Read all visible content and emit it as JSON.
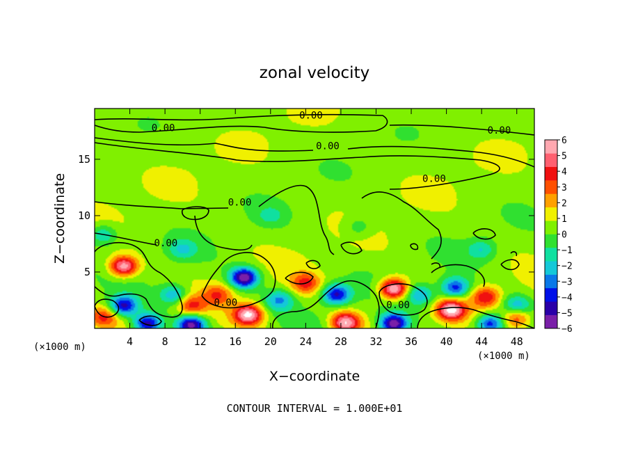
{
  "chart_data": {
    "type": "heatmap",
    "title": "zonal velocity",
    "xlabel": "X−coordinate",
    "ylabel": "Z−coordinate",
    "x_unit_left": "(×1000 m)",
    "x_unit_right": "(×1000 m)",
    "footer": "CONTOUR INTERVAL = 1.000E+01",
    "xlim": [
      0,
      50
    ],
    "ylim": [
      0,
      19.5
    ],
    "x_ticks": [
      4,
      8,
      12,
      16,
      20,
      24,
      28,
      32,
      36,
      40,
      44,
      48
    ],
    "y_ticks": [
      5,
      10,
      15
    ],
    "colorbar": {
      "min": -6,
      "max": 6,
      "ticks": [
        "6",
        "5",
        "4",
        "3",
        "2",
        "1",
        "0",
        "−1",
        "−2",
        "−3",
        "−4",
        "−5",
        "−6"
      ],
      "colors": [
        "#7a1fa8",
        "#2a00a8",
        "#0010e8",
        "#0a78e8",
        "#14c8d8",
        "#10e0a0",
        "#30e030",
        "#80f000",
        "#f0f000",
        "#ffa000",
        "#ff5000",
        "#f01010",
        "#ff6070",
        "#ffa8b0"
      ]
    },
    "contour_label": "0.00",
    "contour_level": 0.0,
    "background_value": 0.5,
    "blobs": [
      {
        "x": 3.3,
        "z": 5.5,
        "value": 5.5
      },
      {
        "x": 17,
        "z": 4.5,
        "value": -6.5
      },
      {
        "x": 34,
        "z": 3.5,
        "value": 6
      },
      {
        "x": 27.5,
        "z": 3,
        "value": -5
      },
      {
        "x": 41,
        "z": 3.6,
        "value": -4.5
      },
      {
        "x": 40.5,
        "z": 1.6,
        "value": 5.5
      },
      {
        "x": 17.5,
        "z": 1.2,
        "value": 5.5
      },
      {
        "x": 28.5,
        "z": 0.5,
        "value": 5.5
      },
      {
        "x": 34,
        "z": 0.4,
        "value": -6.5
      },
      {
        "x": 3.3,
        "z": 2,
        "value": -5
      },
      {
        "x": 6,
        "z": 0.4,
        "value": -5.5
      },
      {
        "x": 11,
        "z": 0.3,
        "value": -6
      },
      {
        "x": 45,
        "z": 0.4,
        "value": -5
      },
      {
        "x": 9,
        "z": 3,
        "value": -3
      },
      {
        "x": 11,
        "z": 2,
        "value": 3
      },
      {
        "x": 44.5,
        "z": 2.8,
        "value": 3.5
      },
      {
        "x": 48,
        "z": 2,
        "value": -3
      },
      {
        "x": 1,
        "z": 1,
        "value": 3
      },
      {
        "x": 24,
        "z": 4,
        "value": 3
      },
      {
        "x": 48,
        "z": 1,
        "value": 3
      },
      {
        "x": 21,
        "z": 2.5,
        "value": -3
      },
      {
        "x": 1,
        "z": 8.3,
        "value": -2.5
      },
      {
        "x": 10,
        "z": 7,
        "value": -2
      },
      {
        "x": 30,
        "z": 9,
        "value": -1.5
      },
      {
        "x": 20,
        "z": 10,
        "value": -1.3
      },
      {
        "x": 44,
        "z": 7,
        "value": -2
      },
      {
        "x": 37,
        "z": 3,
        "value": -3
      },
      {
        "x": 14,
        "z": 3,
        "value": 2.5
      }
    ],
    "contour_labels": [
      {
        "x": 24.6,
        "z": 18.9
      },
      {
        "x": 7.8,
        "z": 17.8
      },
      {
        "x": 46,
        "z": 17.6
      },
      {
        "x": 26.5,
        "z": 16.2
      },
      {
        "x": 38.6,
        "z": 13.3
      },
      {
        "x": 16.5,
        "z": 11.2
      },
      {
        "x": 8.1,
        "z": 7.6
      },
      {
        "x": 14.9,
        "z": 2.3
      },
      {
        "x": 34.5,
        "z": 2.1
      }
    ]
  }
}
